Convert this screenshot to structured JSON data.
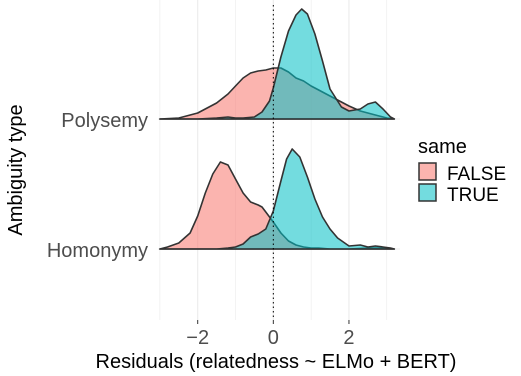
{
  "chart_data": {
    "type": "area",
    "subtype": "ridgeline-density",
    "xlabel": "Residuals (relatedness ~ ELMo + BERT)",
    "ylabel": "Ambiguity type",
    "xlim": [
      -3.05,
      3.35
    ],
    "x_ticks": [
      -2,
      0,
      2
    ],
    "x_tick_labels": [
      "−2",
      "0",
      "2"
    ],
    "categories": [
      "Homonymy",
      "Polysemy"
    ],
    "reference_line": {
      "x": 0,
      "style": "dotted"
    },
    "grid": true,
    "legend": {
      "title": "same",
      "placement": "right",
      "entries": [
        {
          "label": "FALSE",
          "color": "#F8766D"
        },
        {
          "label": "TRUE",
          "color": "#00BFC4"
        }
      ]
    },
    "series": [
      {
        "category": "Polysemy",
        "group": "FALSE",
        "color": "#F8766D",
        "x": [
          -3.0,
          -2.5,
          -2.0,
          -1.5,
          -1.2,
          -1.0,
          -0.8,
          -0.6,
          -0.4,
          -0.2,
          0.0,
          0.2,
          0.4,
          0.6,
          0.8,
          1.0,
          1.2,
          1.5,
          2.0,
          2.3,
          2.6,
          2.8,
          3.0,
          3.2
        ],
        "values": [
          0.0,
          0.01,
          0.06,
          0.16,
          0.25,
          0.33,
          0.41,
          0.46,
          0.48,
          0.49,
          0.51,
          0.51,
          0.47,
          0.41,
          0.38,
          0.33,
          0.29,
          0.23,
          0.13,
          0.08,
          0.05,
          0.03,
          0.01,
          0.0
        ]
      },
      {
        "category": "Polysemy",
        "group": "TRUE",
        "color": "#00BFC4",
        "x": [
          -3.0,
          -2.0,
          -1.5,
          -1.2,
          -1.0,
          -0.8,
          -0.5,
          -0.3,
          -0.1,
          0.0,
          0.2,
          0.4,
          0.6,
          0.75,
          0.9,
          1.1,
          1.3,
          1.5,
          1.8,
          2.0,
          2.3,
          2.5,
          2.7,
          2.9,
          3.1,
          3.2
        ],
        "values": [
          0.0,
          0.0,
          0.01,
          0.02,
          0.01,
          0.01,
          0.02,
          0.07,
          0.18,
          0.31,
          0.62,
          0.88,
          1.04,
          1.1,
          1.05,
          0.85,
          0.58,
          0.3,
          0.12,
          0.08,
          0.1,
          0.15,
          0.17,
          0.1,
          0.02,
          0.0
        ]
      },
      {
        "category": "Homonymy",
        "group": "FALSE",
        "color": "#F8766D",
        "x": [
          -3.0,
          -2.8,
          -2.5,
          -2.2,
          -2.0,
          -1.8,
          -1.6,
          -1.4,
          -1.2,
          -1.0,
          -0.8,
          -0.6,
          -0.4,
          -0.3,
          -0.2,
          0.0,
          0.2,
          0.4,
          0.6,
          0.8,
          1.0,
          1.2,
          1.5,
          2.0,
          2.5,
          3.0,
          3.2
        ],
        "values": [
          0.0,
          0.02,
          0.06,
          0.16,
          0.33,
          0.56,
          0.75,
          0.87,
          0.84,
          0.7,
          0.56,
          0.47,
          0.44,
          0.42,
          0.37,
          0.27,
          0.16,
          0.08,
          0.04,
          0.02,
          0.01,
          0.01,
          0.0,
          0.0,
          0.01,
          0.01,
          0.0
        ]
      },
      {
        "category": "Homonymy",
        "group": "TRUE",
        "color": "#00BFC4",
        "x": [
          -3.0,
          -2.0,
          -1.5,
          -1.2,
          -1.0,
          -0.8,
          -0.6,
          -0.4,
          -0.2,
          0.0,
          0.2,
          0.35,
          0.5,
          0.7,
          0.9,
          1.1,
          1.3,
          1.5,
          1.7,
          2.0,
          2.3,
          2.5,
          2.7,
          2.9,
          3.1,
          3.2
        ],
        "values": [
          0.0,
          0.0,
          0.0,
          0.01,
          0.02,
          0.05,
          0.12,
          0.15,
          0.2,
          0.38,
          0.68,
          0.9,
          1.0,
          0.92,
          0.72,
          0.5,
          0.32,
          0.2,
          0.11,
          0.03,
          0.04,
          0.02,
          0.03,
          0.02,
          0.01,
          0.0
        ]
      }
    ]
  }
}
